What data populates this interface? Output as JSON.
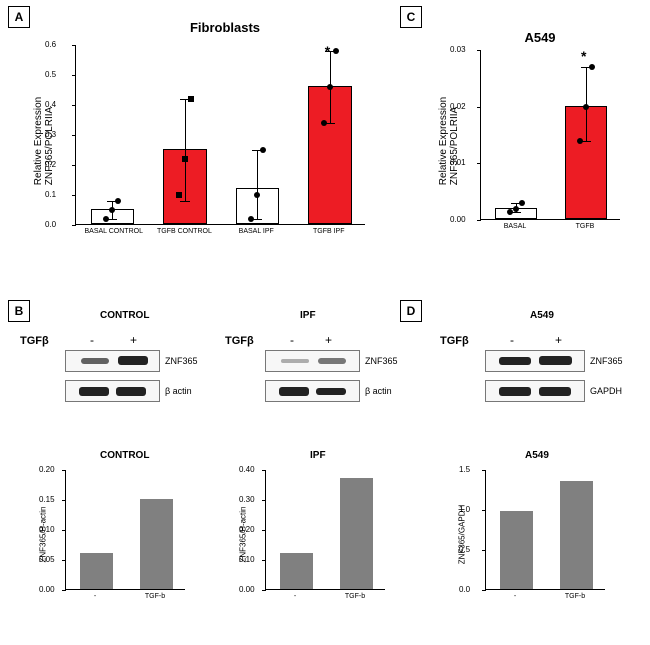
{
  "panels": {
    "A": "A",
    "B": "B",
    "C": "C",
    "D": "D"
  },
  "colors": {
    "white_bar": "#ffffff",
    "red_bar": "#ed1c24",
    "gray_bar": "#9a9a9a",
    "border": "#000000",
    "bg": "#ffffff"
  },
  "panelA": {
    "type": "bar",
    "title": "Fibroblasts",
    "ylabel": "Relative Expression\nZNF365/POLRIIA",
    "ylim": [
      0,
      0.6
    ],
    "ytick_step": 0.1,
    "categories": [
      "BASAL CONTROL",
      "TGFB CONTROL",
      "BASAL IPF",
      "TGFB IPF"
    ],
    "values": [
      0.05,
      0.25,
      0.12,
      0.46
    ],
    "bar_colors": [
      "#ffffff",
      "#ed1c24",
      "#ffffff",
      "#ed1c24"
    ],
    "err": [
      [
        0.02,
        0.08
      ],
      [
        0.08,
        0.42
      ],
      [
        0.02,
        0.25
      ],
      [
        0.34,
        0.58
      ]
    ],
    "points": [
      [
        0.02,
        0.05,
        0.08
      ],
      [
        0.1,
        0.22,
        0.42
      ],
      [
        0.02,
        0.1,
        0.25
      ],
      [
        0.34,
        0.46,
        0.58
      ]
    ],
    "point_markers": [
      "circle",
      "square",
      "circle",
      "circle"
    ],
    "significance": {
      "index": 3,
      "symbol": "*"
    }
  },
  "panelC": {
    "type": "bar",
    "title": "A549",
    "ylabel": "Relative Expression\nZNF365/POLRIIA",
    "ylim": [
      0,
      0.03
    ],
    "ytick_step": 0.01,
    "categories": [
      "BASAL",
      "TGFB"
    ],
    "values": [
      0.002,
      0.02
    ],
    "bar_colors": [
      "#ffffff",
      "#ed1c24"
    ],
    "err": [
      [
        0.0015,
        0.003
      ],
      [
        0.014,
        0.027
      ]
    ],
    "points": [
      [
        0.0015,
        0.002,
        0.003
      ],
      [
        0.014,
        0.02,
        0.027
      ]
    ],
    "significance": {
      "index": 1,
      "symbol": "*"
    }
  },
  "panelB": {
    "groups": [
      "CONTROL",
      "IPF"
    ],
    "treatment_label": "TGFβ",
    "treatment_levels": [
      "-",
      "+"
    ],
    "blots": [
      {
        "protein": "ZNF365",
        "bands": {
          "CONTROL": [
            0.5,
            0.9
          ],
          "IPF": [
            0.15,
            0.4
          ]
        }
      },
      {
        "protein": "β actin",
        "bands": {
          "CONTROL": [
            0.9,
            0.9
          ],
          "IPF": [
            0.9,
            0.7
          ]
        }
      }
    ],
    "quant": {
      "ylabel": "ZNF365/B-actin",
      "CONTROL": {
        "ylim": [
          0,
          0.2
        ],
        "yticks": [
          0.0,
          0.05,
          0.1,
          0.15,
          0.2
        ],
        "values": [
          0.06,
          0.15
        ],
        "x": [
          "-",
          "TGF-b"
        ]
      },
      "IPF": {
        "ylim": [
          0,
          0.4
        ],
        "yticks": [
          0.0,
          0.1,
          0.2,
          0.3,
          0.4
        ],
        "values": [
          0.12,
          0.37
        ],
        "x": [
          "-",
          "TGF-b"
        ]
      }
    }
  },
  "panelD": {
    "group": "A549",
    "treatment_label": "TGFβ",
    "treatment_levels": [
      "-",
      "+"
    ],
    "blots": [
      {
        "protein": "ZNF365",
        "bands": [
          0.8,
          0.95
        ]
      },
      {
        "protein": "GAPDH",
        "bands": [
          0.9,
          0.9
        ]
      }
    ],
    "quant": {
      "ylabel": "ZNF365/GAPDH",
      "ylim": [
        0,
        1.5
      ],
      "yticks": [
        0.0,
        0.5,
        1.0,
        1.5
      ],
      "values": [
        0.98,
        1.35
      ],
      "x": [
        "-",
        "TGF-b"
      ]
    }
  }
}
